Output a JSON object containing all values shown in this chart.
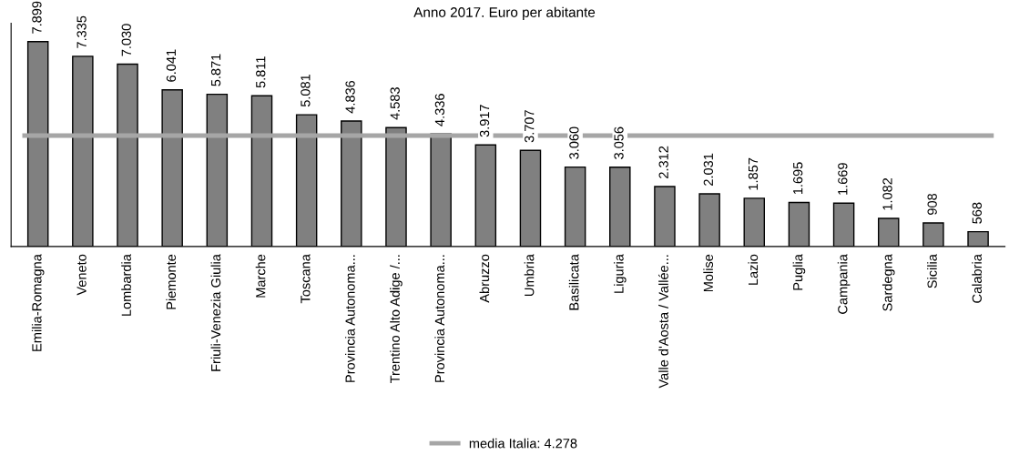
{
  "chart_data": {
    "type": "bar",
    "title": "Anno 2017. Euro per abitante",
    "categories": [
      "Emilia-Romagna",
      "Veneto",
      "Lombardia",
      "Piemonte",
      "Friuli-Venezia Giulia",
      "Marche",
      "Toscana",
      "Provincia Autonoma...",
      "Trentino Alto Adige /...",
      "Provincia Autonoma...",
      "Abruzzo",
      "Umbria",
      "Basilicata",
      "Liguria",
      "Valle d'Aosta / Vallée...",
      "Molise",
      "Lazio",
      "Puglia",
      "Campania",
      "Sardegna",
      "Sicilia",
      "Calabria"
    ],
    "values": [
      7899,
      7335,
      7030,
      6041,
      5871,
      5811,
      5081,
      4836,
      4583,
      4336,
      3917,
      3707,
      3060,
      3056,
      2312,
      2031,
      1857,
      1695,
      1669,
      1082,
      908,
      568
    ],
    "value_labels": [
      "7.899",
      "7.335",
      "7.030",
      "6.041",
      "5.871",
      "5.811",
      "5.081",
      "4.836",
      "4.583",
      "4.336",
      "3.917",
      "3.707",
      "3.060",
      "3.056",
      "2.312",
      "2.031",
      "1.857",
      "1.695",
      "1.669",
      "1.082",
      "908",
      "568"
    ],
    "color": "#808080",
    "ref_lines": [
      {
        "axis": "y",
        "value": 4278,
        "label": "media Italia: 4.278",
        "color": "#a6a6a6"
      }
    ],
    "legend": "bottom",
    "grid": false
  }
}
